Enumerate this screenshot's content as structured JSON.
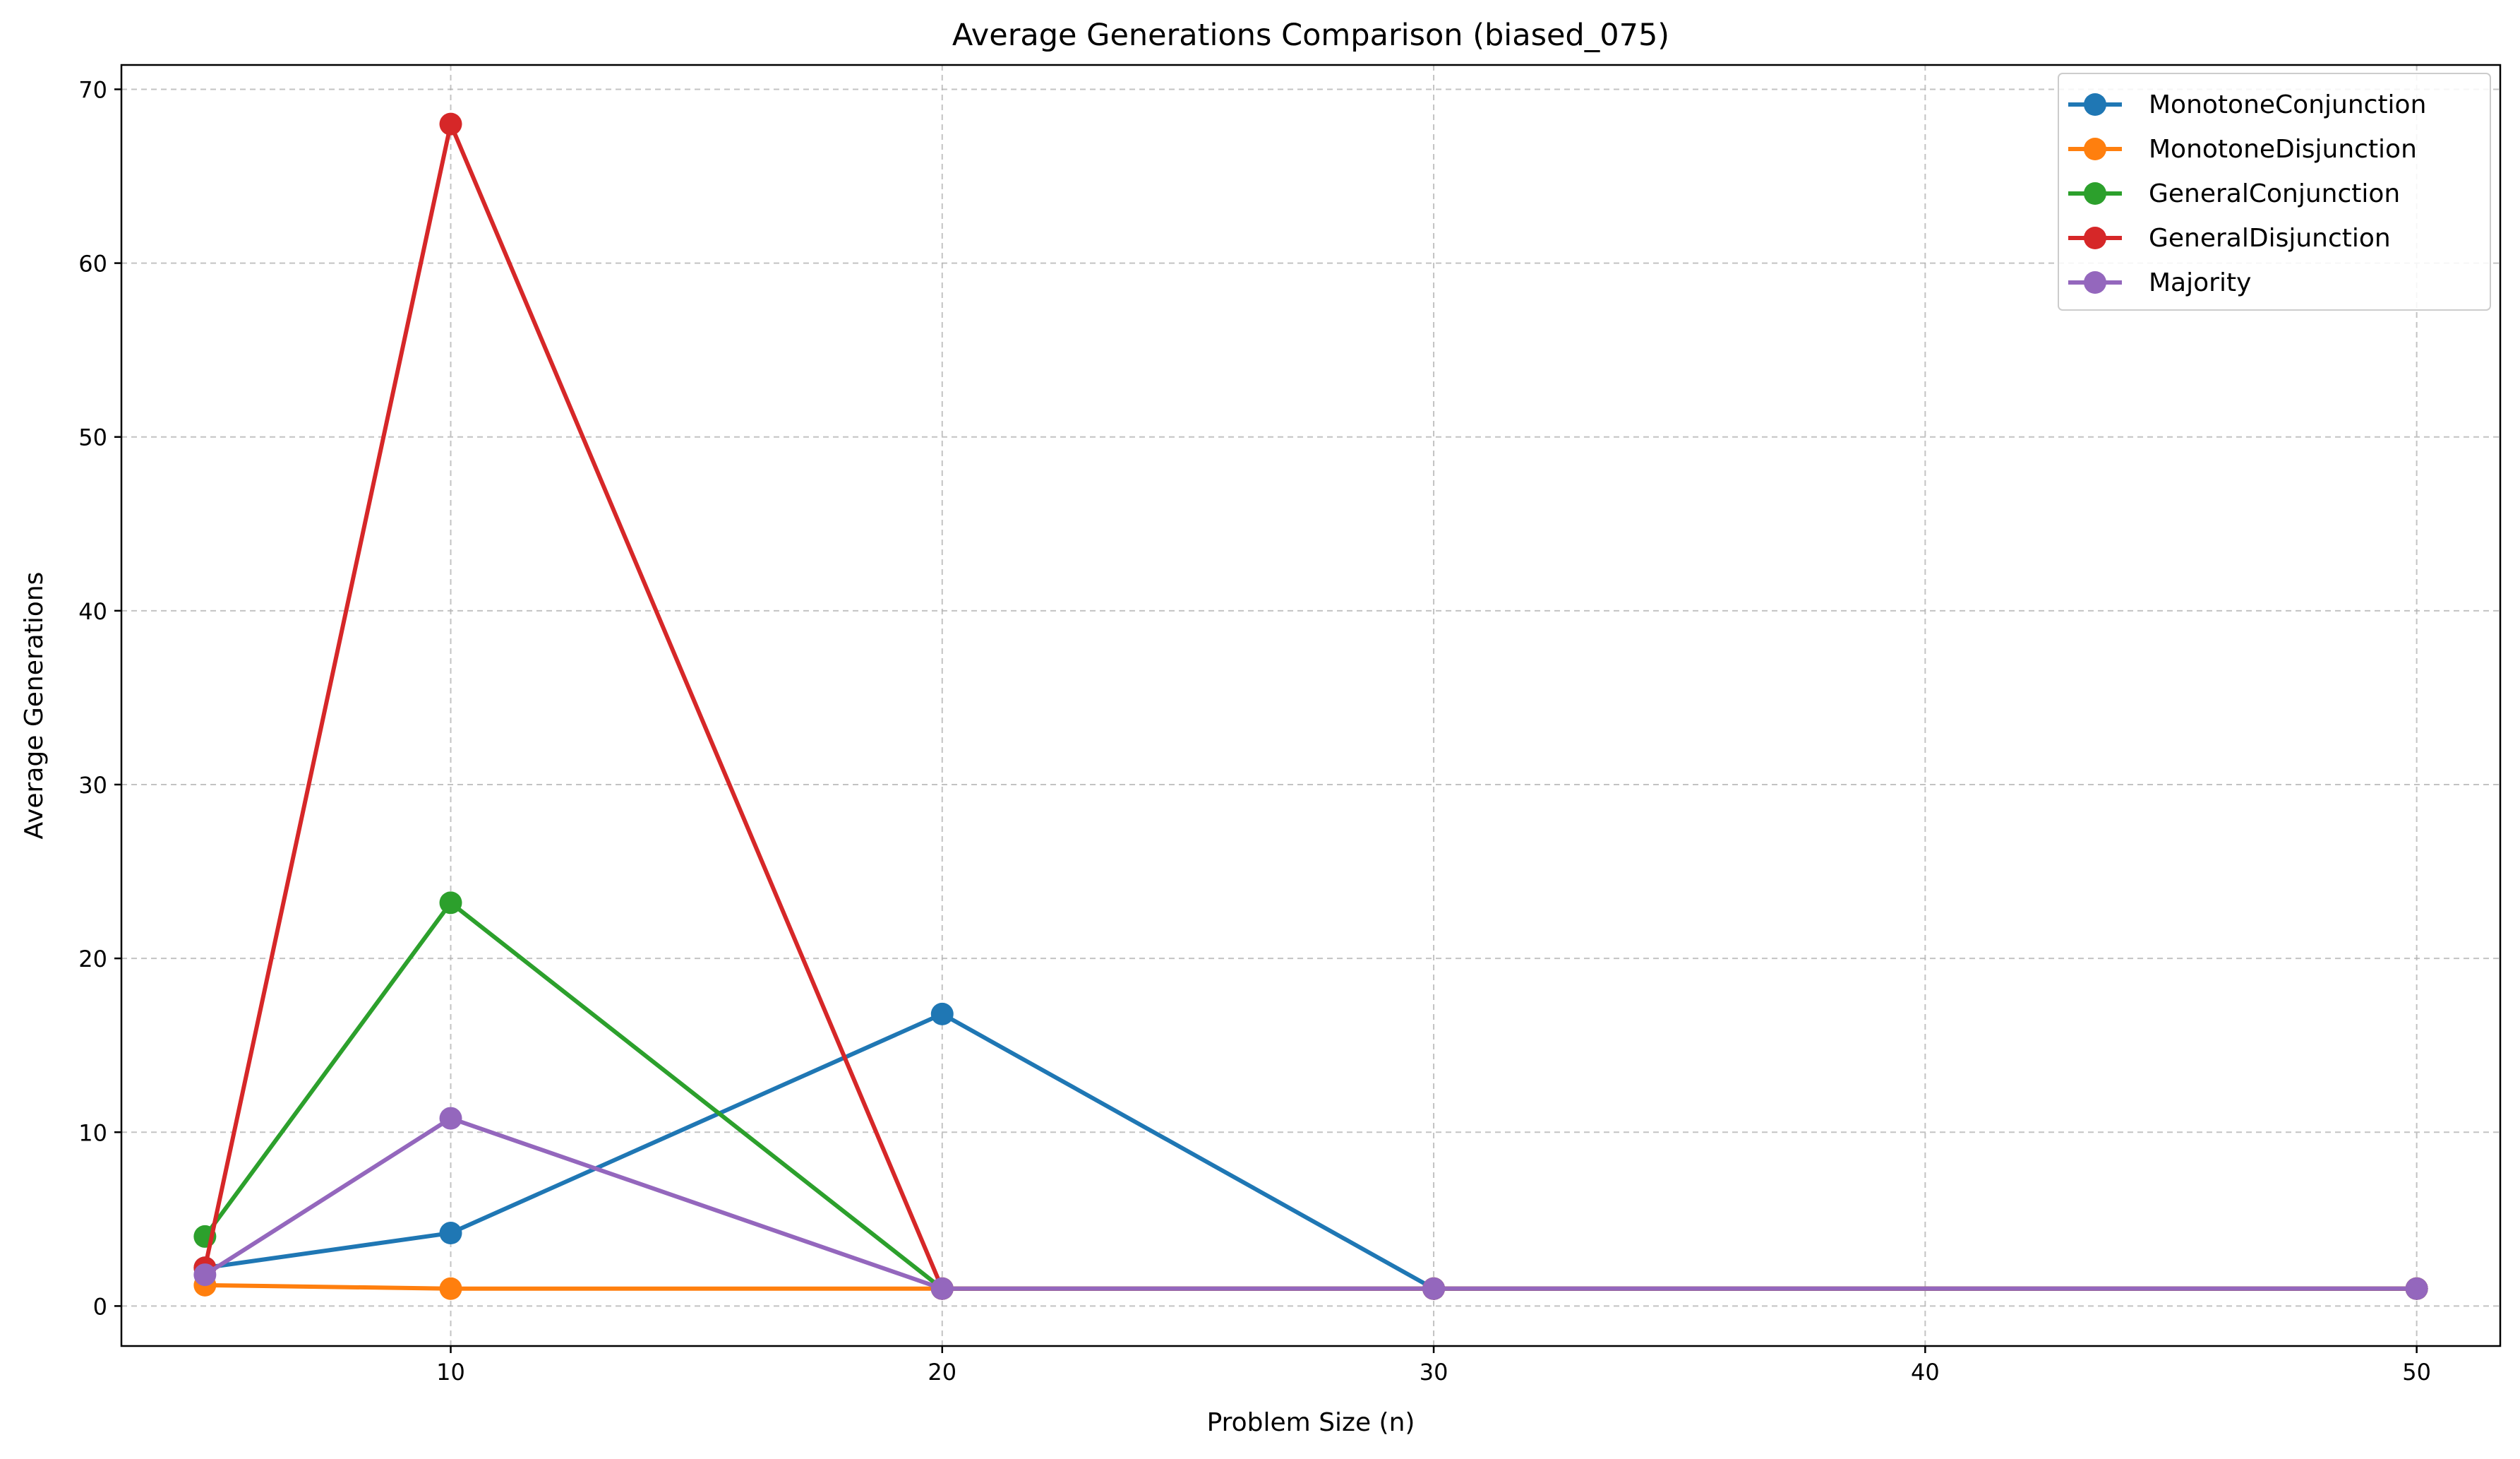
{
  "chart_data": {
    "type": "line",
    "title": "Average Generations Comparison (biased_075)",
    "xlabel": "Problem Size (n)",
    "ylabel": "Average Generations",
    "xlim": [
      3.3,
      51.7
    ],
    "ylim": [
      -2.3,
      71.4
    ],
    "xticks": [
      10,
      20,
      30,
      40,
      50
    ],
    "yticks": [
      0,
      10,
      20,
      30,
      40,
      50,
      60,
      70
    ],
    "grid": true,
    "legend_position": "top-right",
    "x": [
      5,
      10,
      20,
      30,
      50
    ],
    "series": [
      {
        "name": "MonotoneConjunction",
        "color": "#1f77b4",
        "values": [
          2.2,
          4.2,
          16.8,
          1.0,
          1.0
        ]
      },
      {
        "name": "MonotoneDisjunction",
        "color": "#ff7f0e",
        "values": [
          1.2,
          1.0,
          1.0,
          1.0,
          1.0
        ]
      },
      {
        "name": "GeneralConjunction",
        "color": "#2ca02c",
        "values": [
          4.0,
          23.2,
          1.0,
          1.0,
          1.0
        ]
      },
      {
        "name": "GeneralDisjunction",
        "color": "#d62728",
        "values": [
          2.2,
          68.0,
          1.0,
          1.0,
          1.0
        ]
      },
      {
        "name": "Majority",
        "color": "#9467bd",
        "values": [
          1.8,
          10.8,
          1.0,
          1.0,
          1.0
        ]
      }
    ]
  }
}
